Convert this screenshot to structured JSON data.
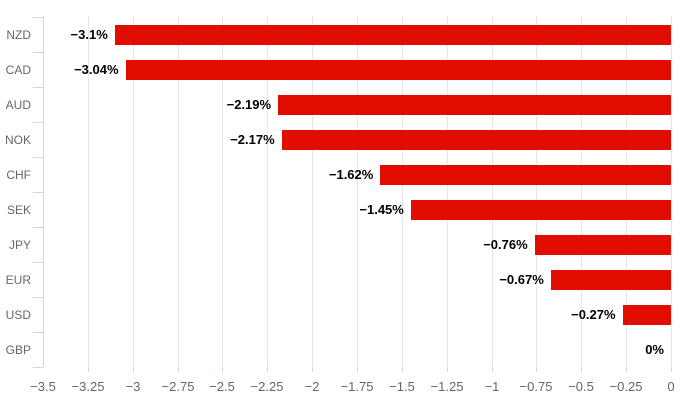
{
  "chart_data": {
    "type": "bar",
    "orientation": "horizontal",
    "title": "",
    "xlabel": "",
    "ylabel": "",
    "categories": [
      "NZD",
      "CAD",
      "AUD",
      "NOK",
      "CHF",
      "SEK",
      "JPY",
      "EUR",
      "USD",
      "GBP"
    ],
    "values": [
      -3.1,
      -3.04,
      -2.19,
      -2.17,
      -1.62,
      -1.45,
      -0.76,
      -0.67,
      -0.27,
      0
    ],
    "data_labels": [
      "−3.1%",
      "−3.04%",
      "−2.19%",
      "−2.17%",
      "−1.62%",
      "−1.45%",
      "−0.76%",
      "−0.67%",
      "−0.27%",
      "0%"
    ],
    "x_tick_values": [
      -3.5,
      -3.25,
      -3,
      -2.75,
      -2.5,
      -2.25,
      -2,
      -1.75,
      -1.5,
      -1.25,
      -1,
      -0.75,
      -0.5,
      -0.25,
      0
    ],
    "x_tick_labels": [
      "−3.5",
      "−3.25",
      "−3",
      "−2.75",
      "−2.5",
      "−2.25",
      "−2",
      "−1.75",
      "−1.5",
      "−1.25",
      "−1",
      "−0.75",
      "−0.5",
      "−0.25",
      "0"
    ],
    "xlim": [
      -3.5,
      0
    ],
    "grid": true,
    "legend": false,
    "colors": {
      "bar": "#e00d00",
      "gridline": "#e6e6e6",
      "axis_line": "#ccd6eb",
      "axis_label": "#666666",
      "data_label": "#000000",
      "background": "#ffffff"
    }
  }
}
